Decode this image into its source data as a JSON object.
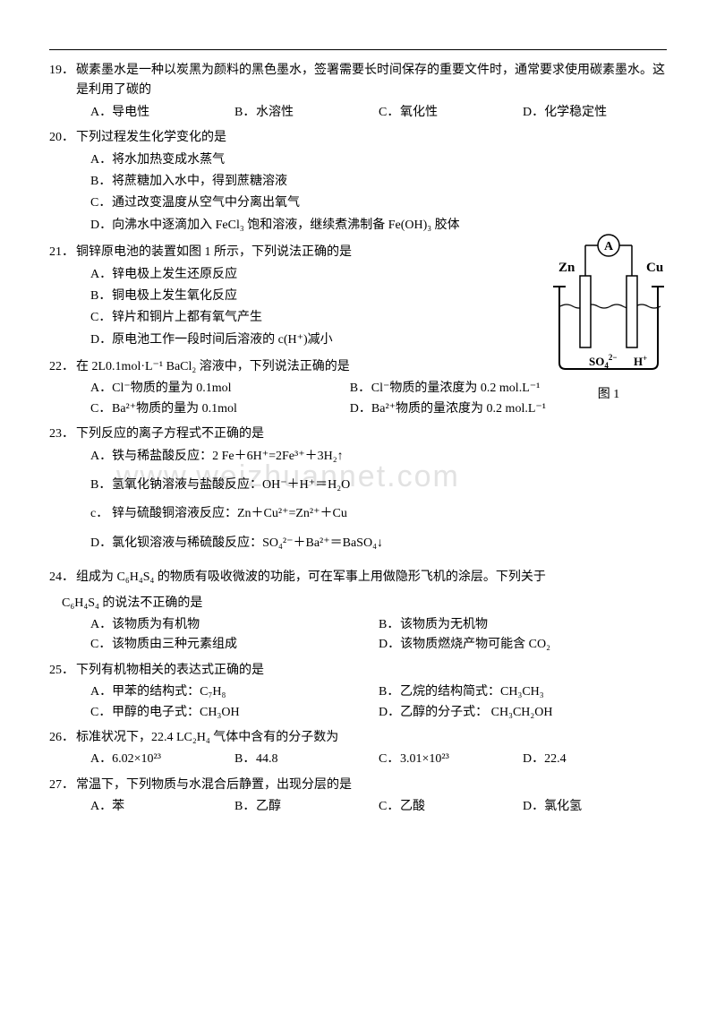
{
  "watermark": "www.weizhuannet.com",
  "diagram_caption": "图 1",
  "diagram_labels": {
    "zn": "Zn",
    "cu": "Cu",
    "a": "A",
    "so4": "SO₄²⁻",
    "h": "H⁺"
  },
  "questions": [
    {
      "num": "19．",
      "stem_lines": [
        "碳素墨水是一种以炭黑为颜料的黑色墨水，签署需要长时间保存的重要文件时，通常要求使用碳素墨水。这是利用了碳的"
      ],
      "opts_layout": "opt-4col",
      "opts": [
        {
          "l": "A．",
          "t": "导电性"
        },
        {
          "l": "B．",
          "t": "水溶性"
        },
        {
          "l": "C．",
          "t": "氧化性"
        },
        {
          "l": "D．",
          "t": "化学稳定性"
        }
      ]
    },
    {
      "num": "20．",
      "stem_lines": [
        "下列过程发生化学变化的是"
      ],
      "opts_layout": "opt-1col",
      "opts": [
        {
          "l": "A．",
          "t": "将水加热变成水蒸气"
        },
        {
          "l": "B．",
          "t": "将蔗糖加入水中，得到蔗糖溶液"
        },
        {
          "l": "C．",
          "t": "通过改变温度从空气中分离出氧气"
        },
        {
          "l": "D．",
          "t": "向沸水中逐滴加入 FeCl₃ 饱和溶液，继续煮沸制备 Fe(OH)₃ 胶体"
        }
      ]
    },
    {
      "num": "21．",
      "stem_lines": [
        "铜锌原电池的装置如图 1 所示，下列说法正确的是"
      ],
      "opts_layout": "opt-1col",
      "opts": [
        {
          "l": "A．",
          "t": "锌电极上发生还原反应"
        },
        {
          "l": "B．",
          "t": "铜电极上发生氧化反应"
        },
        {
          "l": "C．",
          "t": "锌片和铜片上都有氧气产生"
        },
        {
          "l": "D．",
          "t": "原电池工作一段时间后溶液的 c(H⁺)减小"
        }
      ]
    },
    {
      "num": "22．",
      "stem_lines": [
        "在 2L0.1mol·L⁻¹ BaCl₂ 溶液中，下列说法正确的是"
      ],
      "opts_layout": "opt-2col-narrow",
      "opts": [
        {
          "l": "A．",
          "t": "Cl⁻物质的量为 0.1mol"
        },
        {
          "l": "B．",
          "t": "Cl⁻物质的量浓度为 0.2 mol.L⁻¹"
        },
        {
          "l": "C．",
          "t": "Ba²⁺物质的量为 0.1mol"
        },
        {
          "l": "D．",
          "t": "Ba²⁺物质的量浓度为 0.2 mol.L⁻¹"
        }
      ]
    },
    {
      "num": "23．",
      "stem_lines": [
        "下列反应的离子方程式不正确的是"
      ],
      "opts_layout": "opt-1col",
      "spaced": true,
      "opts": [
        {
          "l": "A．",
          "t": "铁与稀盐酸反应：2 Fe＋6H⁺=2Fe³⁺＋3H₂↑"
        },
        {
          "l": "B．",
          "t": "氢氧化钠溶液与盐酸反应：OH⁻＋H⁺＝H₂O"
        },
        {
          "l": "c．",
          "t": "锌与硫酸铜溶液反应：Zn＋Cu²⁺=Zn²⁺＋Cu"
        },
        {
          "l": "D．",
          "t": "氯化钡溶液与稀硫酸反应：SO₄²⁻＋Ba²⁺＝BaSO₄↓"
        }
      ]
    },
    {
      "num": "24．",
      "stem_lines": [
        "组成为 C₆H₄S₄ 的物质有吸收微波的功能，可在军事上用做隐形飞机的涂层。下列关于",
        "C₆H₄S₄ 的说法不正确的是"
      ],
      "opts_layout": "opt-2col",
      "opts": [
        {
          "l": "A．",
          "t": "该物质为有机物"
        },
        {
          "l": "B．",
          "t": "该物质为无机物"
        },
        {
          "l": "C．",
          "t": "该物质由三种元素组成"
        },
        {
          "l": "D．",
          "t": "该物质燃烧产物可能含 CO₂"
        }
      ]
    },
    {
      "num": "25．",
      "stem_lines": [
        "下列有机物相关的表达式正确的是"
      ],
      "opts_layout": "opt-2col",
      "opts": [
        {
          "l": "A．",
          "t": "甲苯的结构式：C₇H₈"
        },
        {
          "l": "B．",
          "t": "乙烷的结构简式：CH₃CH₃"
        },
        {
          "l": "C．",
          "t": "甲醇的电子式：CH₃OH"
        },
        {
          "l": "D．",
          "t": "乙醇的分子式：  CH₃CH₂OH"
        }
      ]
    },
    {
      "num": "26．",
      "stem_lines": [
        "标准状况下，22.4 LC₂H₄ 气体中含有的分子数为"
      ],
      "opts_layout": "opt-4col",
      "opts": [
        {
          "l": "A．",
          "t": "6.02×10²³"
        },
        {
          "l": "B．",
          "t": "44.8"
        },
        {
          "l": "C．",
          "t": "3.01×10²³"
        },
        {
          "l": "D．",
          "t": "22.4"
        }
      ]
    },
    {
      "num": "27．",
      "stem_lines": [
        "常温下，下列物质与水混合后静置，出现分层的是"
      ],
      "opts_layout": "opt-4col",
      "opts": [
        {
          "l": "A．",
          "t": "苯"
        },
        {
          "l": "B．",
          "t": "乙醇"
        },
        {
          "l": "C．",
          "t": "乙酸"
        },
        {
          "l": "D．",
          "t": "氯化氢"
        }
      ]
    }
  ]
}
